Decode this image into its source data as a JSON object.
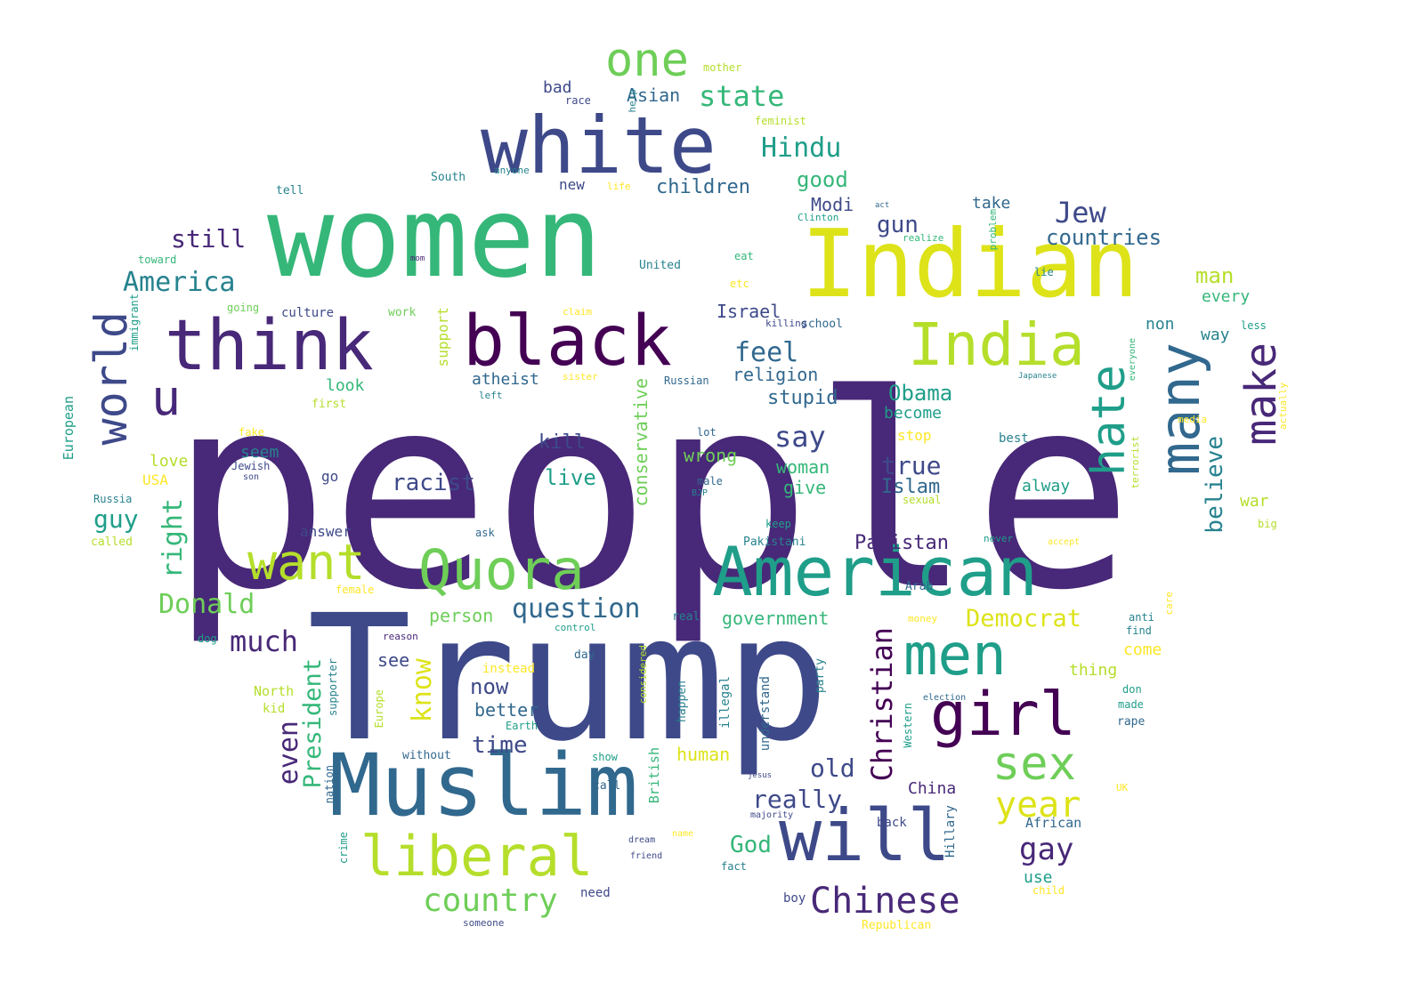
{
  "palette": {
    "v1": "#440154",
    "v2": "#482878",
    "v3": "#3e4989",
    "v4": "#31688e",
    "v5": "#26828e",
    "v6": "#1f9e89",
    "v7": "#35b779",
    "v8": "#6ece58",
    "v9": "#b5de2b",
    "v10": "#dde318",
    "v11": "#fde725",
    "v12": "#d8e219"
  },
  "words": [
    {
      "text": "people",
      "color": "v2"
    },
    {
      "text": "Trump",
      "color": "v3"
    },
    {
      "text": "women",
      "color": "v7"
    },
    {
      "text": "Indian",
      "color": "v10"
    },
    {
      "text": "white",
      "color": "v3"
    },
    {
      "text": "black",
      "color": "v1"
    },
    {
      "text": "think",
      "color": "v2"
    },
    {
      "text": "Muslim",
      "color": "v4"
    },
    {
      "text": "American",
      "color": "v6"
    },
    {
      "text": "Quora",
      "color": "v8"
    },
    {
      "text": "will",
      "color": "v3"
    },
    {
      "text": "girl",
      "color": "v1"
    },
    {
      "text": "men",
      "color": "v6"
    },
    {
      "text": "India",
      "color": "v9"
    },
    {
      "text": "many",
      "color": "v4"
    },
    {
      "text": "liberal",
      "color": "v9"
    },
    {
      "text": "want",
      "color": "v9"
    },
    {
      "text": "world",
      "color": "v3"
    },
    {
      "text": "hate",
      "color": "v6"
    },
    {
      "text": "make",
      "color": "v2"
    },
    {
      "text": "sex",
      "color": "v8"
    },
    {
      "text": "one",
      "color": "v8"
    },
    {
      "text": "u",
      "color": "v2"
    },
    {
      "text": "Chinese",
      "color": "v2"
    },
    {
      "text": "Christian",
      "color": "v1"
    },
    {
      "text": "year",
      "color": "v10"
    },
    {
      "text": "state",
      "color": "v7"
    },
    {
      "text": "America",
      "color": "v5"
    },
    {
      "text": "Donald",
      "color": "v8"
    },
    {
      "text": "question",
      "color": "v4"
    },
    {
      "text": "country",
      "color": "v8"
    },
    {
      "text": "Jew",
      "color": "v3"
    },
    {
      "text": "Hindu",
      "color": "v6"
    },
    {
      "text": "racist",
      "color": "v3"
    },
    {
      "text": "still",
      "color": "v2"
    },
    {
      "text": "countries",
      "color": "v4"
    },
    {
      "text": "feel",
      "color": "v4"
    },
    {
      "text": "say",
      "color": "v3"
    },
    {
      "text": "President",
      "color": "v7"
    },
    {
      "text": "right",
      "color": "v7"
    },
    {
      "text": "believe",
      "color": "v5"
    },
    {
      "text": "gay",
      "color": "v2"
    },
    {
      "text": "much",
      "color": "v2"
    },
    {
      "text": "know",
      "color": "v10"
    },
    {
      "text": "even",
      "color": "v2"
    },
    {
      "text": "Democrat",
      "color": "v10"
    },
    {
      "text": "Obama",
      "color": "v6"
    },
    {
      "text": "true",
      "color": "v3"
    },
    {
      "text": "good",
      "color": "v7"
    },
    {
      "text": "guy",
      "color": "v6"
    },
    {
      "text": "man",
      "color": "v9"
    },
    {
      "text": "God",
      "color": "v7"
    },
    {
      "text": "now",
      "color": "v3"
    },
    {
      "text": "really",
      "color": "v3"
    },
    {
      "text": "old",
      "color": "v3"
    },
    {
      "text": "time",
      "color": "v3"
    },
    {
      "text": "better",
      "color": "v4"
    },
    {
      "text": "gun",
      "color": "v3"
    },
    {
      "text": "Modi",
      "color": "v3"
    },
    {
      "text": "Islam",
      "color": "v4"
    },
    {
      "text": "Pakistan",
      "color": "v2"
    },
    {
      "text": "wrong",
      "color": "v8"
    },
    {
      "text": "live",
      "color": "v6"
    },
    {
      "text": "kill",
      "color": "v3"
    },
    {
      "text": "see",
      "color": "v3"
    },
    {
      "text": "children",
      "color": "v4"
    },
    {
      "text": "religion",
      "color": "v4"
    },
    {
      "text": "stupid",
      "color": "v4"
    },
    {
      "text": "Israel",
      "color": "v3"
    },
    {
      "text": "conservative",
      "color": "v8"
    },
    {
      "text": "support",
      "color": "v9"
    },
    {
      "text": "government",
      "color": "v7"
    },
    {
      "text": "person",
      "color": "v8"
    },
    {
      "text": "woman",
      "color": "v7"
    },
    {
      "text": "give",
      "color": "v7"
    },
    {
      "text": "human",
      "color": "v10"
    },
    {
      "text": "Asian",
      "color": "v4"
    },
    {
      "text": "bad",
      "color": "v3"
    },
    {
      "text": "new",
      "color": "v3"
    },
    {
      "text": "take",
      "color": "v4"
    },
    {
      "text": "European",
      "color": "v6"
    },
    {
      "text": "look",
      "color": "v7"
    },
    {
      "text": "atheist",
      "color": "v4"
    },
    {
      "text": "become",
      "color": "v6"
    },
    {
      "text": "stop",
      "color": "v11"
    },
    {
      "text": "come",
      "color": "v11"
    },
    {
      "text": "thing",
      "color": "v9"
    },
    {
      "text": "alway",
      "color": "v6"
    },
    {
      "text": "war",
      "color": "v9"
    },
    {
      "text": "way",
      "color": "v5"
    },
    {
      "text": "non",
      "color": "v5"
    },
    {
      "text": "every",
      "color": "v7"
    },
    {
      "text": "love",
      "color": "v9"
    },
    {
      "text": "seem",
      "color": "v5"
    },
    {
      "text": "answer",
      "color": "v3"
    },
    {
      "text": "go",
      "color": "v3"
    },
    {
      "text": "USA",
      "color": "v11"
    },
    {
      "text": "mother",
      "color": "v9"
    },
    {
      "text": "feminist",
      "color": "v9"
    },
    {
      "text": "South",
      "color": "v5"
    },
    {
      "text": "anyone",
      "color": "v5"
    },
    {
      "text": "life",
      "color": "v11"
    },
    {
      "text": "Clinton",
      "color": "v6"
    },
    {
      "text": "realize",
      "color": "v7"
    },
    {
      "text": "tell",
      "color": "v5"
    },
    {
      "text": "toward",
      "color": "v7"
    },
    {
      "text": "United",
      "color": "v5"
    },
    {
      "text": "eat",
      "color": "v7"
    },
    {
      "text": "etc",
      "color": "v11"
    },
    {
      "text": "culture",
      "color": "v3"
    },
    {
      "text": "work",
      "color": "v8"
    },
    {
      "text": "going",
      "color": "v8"
    },
    {
      "text": "claim",
      "color": "v11"
    },
    {
      "text": "school",
      "color": "v4"
    },
    {
      "text": "killing",
      "color": "v3"
    },
    {
      "text": "less",
      "color": "v6"
    },
    {
      "text": "Russian",
      "color": "v4"
    },
    {
      "text": "left",
      "color": "v5"
    },
    {
      "text": "sister",
      "color": "v11"
    },
    {
      "text": "first",
      "color": "v9"
    },
    {
      "text": "fake",
      "color": "v11"
    },
    {
      "text": "lot",
      "color": "v4"
    },
    {
      "text": "best",
      "color": "v5"
    },
    {
      "text": "media",
      "color": "v11"
    },
    {
      "text": "Jewish",
      "color": "v3"
    },
    {
      "text": "son",
      "color": "v3"
    },
    {
      "text": "male",
      "color": "v4"
    },
    {
      "text": "BJP",
      "color": "v5"
    },
    {
      "text": "Russia",
      "color": "v5"
    },
    {
      "text": "called",
      "color": "v9"
    },
    {
      "text": "ask",
      "color": "v4"
    },
    {
      "text": "keep",
      "color": "v6"
    },
    {
      "text": "Pakistani",
      "color": "v5"
    },
    {
      "text": "never",
      "color": "v6"
    },
    {
      "text": "accept",
      "color": "v11"
    },
    {
      "text": "big",
      "color": "v9"
    },
    {
      "text": "sexual",
      "color": "v9"
    },
    {
      "text": "female",
      "color": "v11"
    },
    {
      "text": "Arab",
      "color": "v4"
    },
    {
      "text": "real",
      "color": "v5"
    },
    {
      "text": "control",
      "color": "v6"
    },
    {
      "text": "money",
      "color": "v11"
    },
    {
      "text": "anti",
      "color": "v5"
    },
    {
      "text": "find",
      "color": "v5"
    },
    {
      "text": "dog",
      "color": "v6"
    },
    {
      "text": "reason",
      "color": "v2"
    },
    {
      "text": "instead",
      "color": "v11"
    },
    {
      "text": "day",
      "color": "v4"
    },
    {
      "text": "North",
      "color": "v9"
    },
    {
      "text": "kid",
      "color": "v9"
    },
    {
      "text": "supporter",
      "color": "v5"
    },
    {
      "text": "Europe",
      "color": "v9"
    },
    {
      "text": "without",
      "color": "v4"
    },
    {
      "text": "Earth",
      "color": "v6"
    },
    {
      "text": "considered",
      "color": "v9"
    },
    {
      "text": "happen",
      "color": "v5"
    },
    {
      "text": "illegal",
      "color": "v5"
    },
    {
      "text": "understand",
      "color": "v4"
    },
    {
      "text": "party",
      "color": "v5"
    },
    {
      "text": "election",
      "color": "v4"
    },
    {
      "text": "Western",
      "color": "v6"
    },
    {
      "text": "don",
      "color": "v6"
    },
    {
      "text": "made",
      "color": "v6"
    },
    {
      "text": "rape",
      "color": "v4"
    },
    {
      "text": "show",
      "color": "v6"
    },
    {
      "text": "British",
      "color": "v7"
    },
    {
      "text": "call",
      "color": "v4"
    },
    {
      "text": "crime",
      "color": "v6"
    },
    {
      "text": "nation",
      "color": "v4"
    },
    {
      "text": "China",
      "color": "v2"
    },
    {
      "text": "Hillary",
      "color": "v4"
    },
    {
      "text": "back",
      "color": "v3"
    },
    {
      "text": "African",
      "color": "v4"
    },
    {
      "text": "UK",
      "color": "v11"
    },
    {
      "text": "use",
      "color": "v6"
    },
    {
      "text": "child",
      "color": "v11"
    },
    {
      "text": "majority",
      "color": "v3"
    },
    {
      "text": "friend",
      "color": "v3"
    },
    {
      "text": "need",
      "color": "v3"
    },
    {
      "text": "fact",
      "color": "v5"
    },
    {
      "text": "boy",
      "color": "v3"
    },
    {
      "text": "someone",
      "color": "v3"
    },
    {
      "text": "Republican",
      "color": "v11"
    },
    {
      "text": "immigrant",
      "color": "v6"
    },
    {
      "text": "problem",
      "color": "v7"
    },
    {
      "text": "lie",
      "color": "v5"
    },
    {
      "text": "Japanese",
      "color": "v5"
    },
    {
      "text": "everyone",
      "color": "v7"
    },
    {
      "text": "terrorist",
      "color": "v9"
    },
    {
      "text": "actually",
      "color": "v11"
    },
    {
      "text": "care",
      "color": "v11"
    },
    {
      "text": "help",
      "color": "v5"
    },
    {
      "text": "race",
      "color": "v3"
    },
    {
      "text": "act",
      "color": "v4"
    },
    {
      "text": "mom",
      "color": "v2"
    },
    {
      "text": "jesus",
      "color": "v3"
    },
    {
      "text": "name",
      "color": "v11"
    },
    {
      "text": "dream",
      "color": "v3"
    }
  ]
}
